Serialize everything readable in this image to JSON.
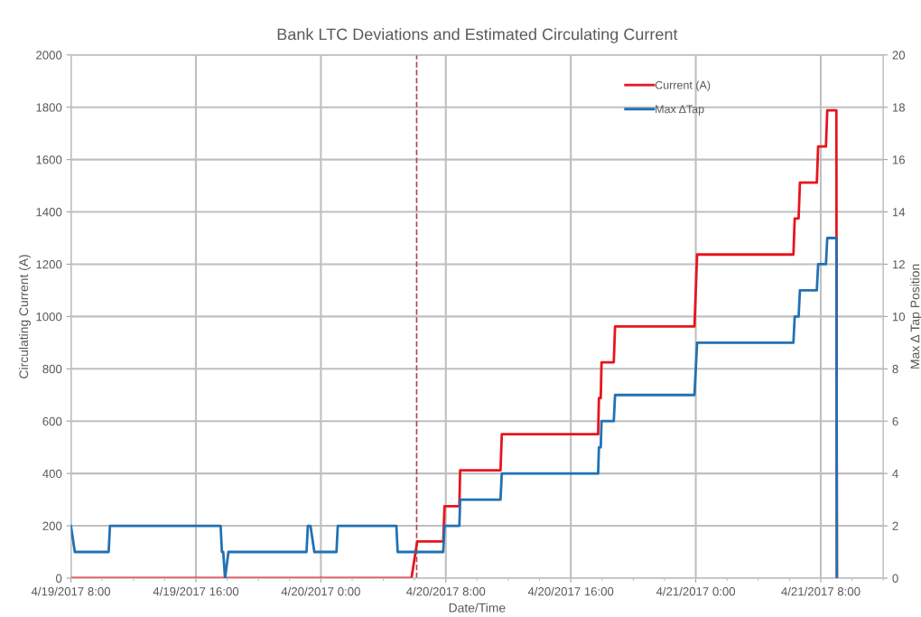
{
  "chart_data": {
    "type": "line",
    "title": "Bank LTC Deviations and Estimated Circulating Current",
    "xlabel": "Date/Time",
    "ylabel": "Circulating Current (A)",
    "y2label": "Max Δ Tap Position",
    "series": [
      {
        "name": "Current (A)",
        "color": "#e8141c",
        "axis": "y",
        "x": [
          "2017-04-19T08:00",
          "2017-04-20T05:48",
          "2017-04-20T06:10",
          "2017-04-20T07:50",
          "2017-04-20T07:55",
          "2017-04-20T08:52",
          "2017-04-20T08:55",
          "2017-04-20T11:30",
          "2017-04-20T11:35",
          "2017-04-20T17:45",
          "2017-04-20T17:48",
          "2017-04-20T17:55",
          "2017-04-20T17:58",
          "2017-04-20T18:45",
          "2017-04-20T18:50",
          "2017-04-20T23:55",
          "2017-04-21T00:05",
          "2017-04-21T06:15",
          "2017-04-21T06:20",
          "2017-04-21T06:35",
          "2017-04-21T06:40",
          "2017-04-21T07:45",
          "2017-04-21T07:50",
          "2017-04-21T08:20",
          "2017-04-21T08:25",
          "2017-04-21T09:00",
          "2017-04-21T09:02"
        ],
        "values": [
          0,
          0,
          140,
          140,
          275,
          275,
          412,
          412,
          550,
          550,
          688,
          688,
          825,
          825,
          962,
          962,
          1237,
          1237,
          1375,
          1375,
          1512,
          1512,
          1650,
          1650,
          1788,
          1788,
          0
        ]
      },
      {
        "name": "Max ΔTap",
        "color": "#2271b3",
        "axis": "y2",
        "x": [
          "2017-04-19T08:00",
          "2017-04-19T08:15",
          "2017-04-19T10:25",
          "2017-04-19T10:30",
          "2017-04-19T17:35",
          "2017-04-19T17:40",
          "2017-04-19T17:45",
          "2017-04-19T17:52",
          "2017-04-19T18:05",
          "2017-04-19T23:05",
          "2017-04-19T23:10",
          "2017-04-19T23:20",
          "2017-04-19T23:35",
          "2017-04-20T01:00",
          "2017-04-20T01:05",
          "2017-04-20T04:50",
          "2017-04-20T04:55",
          "2017-04-20T07:50",
          "2017-04-20T07:55",
          "2017-04-20T08:52",
          "2017-04-20T08:55",
          "2017-04-20T11:30",
          "2017-04-20T11:35",
          "2017-04-20T17:45",
          "2017-04-20T17:48",
          "2017-04-20T17:55",
          "2017-04-20T17:58",
          "2017-04-20T18:45",
          "2017-04-20T18:50",
          "2017-04-20T23:55",
          "2017-04-21T00:05",
          "2017-04-21T06:15",
          "2017-04-21T06:20",
          "2017-04-21T06:35",
          "2017-04-21T06:40",
          "2017-04-21T07:45",
          "2017-04-21T07:50",
          "2017-04-21T08:20",
          "2017-04-21T08:25",
          "2017-04-21T09:00",
          "2017-04-21T09:02"
        ],
        "values": [
          2,
          1,
          1,
          2,
          2,
          1,
          1,
          0,
          1,
          1,
          2,
          2,
          1,
          1,
          2,
          2,
          1,
          1,
          2,
          2,
          3,
          3,
          4,
          4,
          5,
          5,
          6,
          6,
          7,
          7,
          9,
          9,
          10,
          10,
          11,
          11,
          12,
          12,
          13,
          13,
          0
        ]
      }
    ],
    "xlim": [
      "2017-04-19T08:00",
      "2017-04-21T12:00"
    ],
    "xticks": [
      {
        "value": "2017-04-19T08:00",
        "label": "4/19/2017 8:00"
      },
      {
        "value": "2017-04-19T16:00",
        "label": "4/19/2017 16:00"
      },
      {
        "value": "2017-04-20T00:00",
        "label": "4/20/2017 0:00"
      },
      {
        "value": "2017-04-20T08:00",
        "label": "4/20/2017 8:00"
      },
      {
        "value": "2017-04-20T16:00",
        "label": "4/20/2017 16:00"
      },
      {
        "value": "2017-04-21T00:00",
        "label": "4/21/2017 0:00"
      },
      {
        "value": "2017-04-21T08:00",
        "label": "4/21/2017 8:00"
      }
    ],
    "ylim": [
      0,
      2000
    ],
    "yticks": [
      0,
      200,
      400,
      600,
      800,
      1000,
      1200,
      1400,
      1600,
      1800,
      2000
    ],
    "y2lim": [
      0,
      20
    ],
    "y2ticks": [
      0,
      2,
      4,
      6,
      8,
      10,
      12,
      14,
      16,
      18,
      20
    ],
    "ref_lines": [
      {
        "axis": "x",
        "value": "2017-04-20T06:08",
        "color": "#a84a52",
        "line_style": "dashed"
      }
    ],
    "grid": true,
    "legend": "top right",
    "line_style": "solid",
    "marker": "none"
  }
}
